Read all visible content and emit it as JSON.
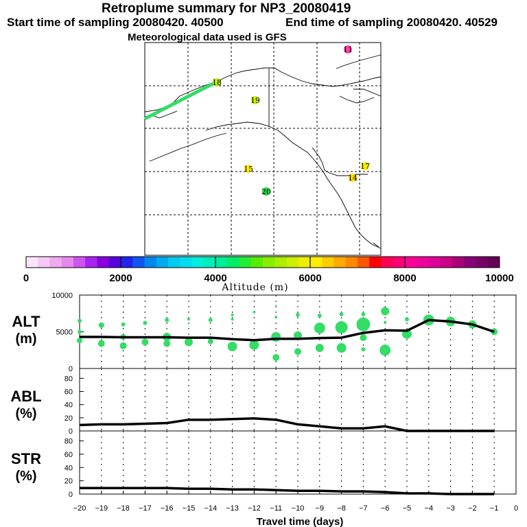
{
  "header": {
    "title": "Retroplume summary for NP3_20080419",
    "start": "Start time of sampling 20080420. 40500",
    "end": "End time of sampling 20080420. 40529",
    "met": "Meteorological data used is GFS"
  },
  "colors": {
    "track": "#33dd66",
    "line": "#000000"
  },
  "map": {
    "markers": [
      {
        "label": "11",
        "color": "#ff44aa"
      },
      {
        "label": "18",
        "color": "#bbee00"
      },
      {
        "label": "19",
        "color": "#ccee00"
      },
      {
        "label": "15",
        "color": "#ffee00"
      },
      {
        "label": "20",
        "color": "#22dd44"
      },
      {
        "label": "17",
        "color": "#ffee00"
      },
      {
        "label": "14",
        "color": "#ffdd00"
      }
    ]
  },
  "colorbar": {
    "ticks": [
      "0",
      "2000",
      "4000",
      "6000",
      "8000",
      "10000"
    ],
    "label": "Altitude (m)",
    "colors": [
      "#fbe4fb",
      "#f5c8f5",
      "#eeaaee",
      "#e488ee",
      "#cc55ee",
      "#aa22ee",
      "#8800dd",
      "#5500dd",
      "#2222ee",
      "#1155ee",
      "#0088ee",
      "#00aaee",
      "#00ccee",
      "#00ddee",
      "#00eedd",
      "#00eebb",
      "#00ee99",
      "#00ee66",
      "#22ee33",
      "#55ee00",
      "#88ee00",
      "#aaee00",
      "#ccee00",
      "#eeee00",
      "#ffee00",
      "#ffcc00",
      "#ffaa00",
      "#ff8800",
      "#ff5500",
      "#ff0000",
      "#ff0055",
      "#ff0077",
      "#ff0099",
      "#ee0099",
      "#dd0099",
      "#cc0088",
      "#aa0077",
      "#880077",
      "#770066",
      "#660055"
    ]
  },
  "chart_data": [
    {
      "type": "line",
      "panel": "ALT",
      "label_line1": "ALT",
      "label_line2": "(m)",
      "ylim": [
        0,
        10000
      ],
      "yticks": [
        "0",
        "5000",
        "10000"
      ],
      "x": [
        -20,
        -19,
        -18,
        -17,
        -16,
        -15,
        -14,
        -13,
        -12,
        -11,
        -10,
        -9,
        -8,
        -7,
        -6,
        -5,
        -4,
        -3,
        -2,
        -1
      ],
      "series": [
        {
          "name": "median altitude",
          "values": [
            4300,
            4300,
            4250,
            4250,
            4250,
            4200,
            4200,
            4000,
            3850,
            4050,
            4050,
            4150,
            4200,
            4850,
            5200,
            5150,
            6600,
            6400,
            6000,
            5000
          ]
        }
      ],
      "bubbles": [
        {
          "x": -20,
          "y": 6500,
          "r": 3
        },
        {
          "x": -20,
          "y": 5000,
          "r": 3
        },
        {
          "x": -20,
          "y": 3800,
          "r": 4
        },
        {
          "x": -19,
          "y": 5900,
          "r": 4
        },
        {
          "x": -19,
          "y": 3400,
          "r": 5
        },
        {
          "x": -18,
          "y": 6000,
          "r": 3
        },
        {
          "x": -18,
          "y": 4300,
          "r": 4
        },
        {
          "x": -18,
          "y": 3100,
          "r": 5
        },
        {
          "x": -17,
          "y": 6200,
          "r": 3
        },
        {
          "x": -17,
          "y": 3600,
          "r": 5
        },
        {
          "x": -16,
          "y": 6600,
          "r": 3
        },
        {
          "x": -16,
          "y": 4300,
          "r": 6
        },
        {
          "x": -16,
          "y": 3400,
          "r": 5
        },
        {
          "x": -15,
          "y": 6700,
          "r": 2
        },
        {
          "x": -15,
          "y": 3600,
          "r": 6
        },
        {
          "x": -14,
          "y": 6600,
          "r": 3
        },
        {
          "x": -14,
          "y": 3700,
          "r": 4
        },
        {
          "x": -13,
          "y": 7300,
          "r": 2
        },
        {
          "x": -13,
          "y": 6700,
          "r": 2
        },
        {
          "x": -13,
          "y": 3000,
          "r": 7
        },
        {
          "x": -12,
          "y": 7700,
          "r": 2
        },
        {
          "x": -12,
          "y": 3200,
          "r": 7
        },
        {
          "x": -11,
          "y": 8600,
          "r": 1
        },
        {
          "x": -11,
          "y": 7000,
          "r": 2
        },
        {
          "x": -11,
          "y": 4300,
          "r": 7
        },
        {
          "x": -11,
          "y": 1500,
          "r": 5
        },
        {
          "x": -10,
          "y": 7300,
          "r": 3
        },
        {
          "x": -10,
          "y": 4500,
          "r": 6
        },
        {
          "x": -10,
          "y": 2300,
          "r": 5
        },
        {
          "x": -9,
          "y": 7200,
          "r": 3
        },
        {
          "x": -9,
          "y": 5500,
          "r": 8
        },
        {
          "x": -9,
          "y": 2800,
          "r": 6
        },
        {
          "x": -8,
          "y": 7400,
          "r": 3
        },
        {
          "x": -8,
          "y": 5600,
          "r": 9
        },
        {
          "x": -8,
          "y": 2800,
          "r": 7
        },
        {
          "x": -7,
          "y": 7400,
          "r": 3
        },
        {
          "x": -7,
          "y": 6000,
          "r": 10
        },
        {
          "x": -7,
          "y": 4200,
          "r": 5
        },
        {
          "x": -7,
          "y": 2600,
          "r": 3
        },
        {
          "x": -6,
          "y": 7800,
          "r": 6
        },
        {
          "x": -6,
          "y": 6300,
          "r": 2
        },
        {
          "x": -6,
          "y": 2500,
          "r": 8
        },
        {
          "x": -5,
          "y": 6700,
          "r": 3
        },
        {
          "x": -5,
          "y": 4700,
          "r": 7
        },
        {
          "x": -4,
          "y": 6600,
          "r": 8
        },
        {
          "x": -3,
          "y": 6400,
          "r": 7
        },
        {
          "x": -2,
          "y": 6000,
          "r": 6
        },
        {
          "x": -1,
          "y": 5000,
          "r": 5
        }
      ]
    },
    {
      "type": "line",
      "panel": "ABL",
      "label_line1": "ABL",
      "label_line2": "(%)",
      "ylim": [
        0,
        95
      ],
      "yticks": [
        "0",
        "20",
        "40",
        "60",
        "80"
      ],
      "x": [
        -20,
        -19,
        -18,
        -17,
        -16,
        -15,
        -14,
        -13,
        -12,
        -11,
        -10,
        -9,
        -8,
        -7,
        -6,
        -5,
        -4,
        -3,
        -2,
        -1
      ],
      "series": [
        {
          "name": "ABL fraction",
          "values": [
            9,
            10,
            10,
            11,
            12,
            17,
            17,
            18,
            19,
            17,
            10,
            7,
            4,
            4,
            7,
            0,
            0,
            0,
            0,
            0
          ]
        }
      ]
    },
    {
      "type": "line",
      "panel": "STR",
      "label_line1": "STR",
      "label_line2": "(%)",
      "ylim": [
        0,
        95
      ],
      "yticks": [
        "0",
        "20",
        "40",
        "60",
        "80"
      ],
      "x": [
        -20,
        -19,
        -18,
        -17,
        -16,
        -15,
        -14,
        -13,
        -12,
        -11,
        -10,
        -9,
        -8,
        -7,
        -6,
        -5,
        -4,
        -3,
        -2,
        -1
      ],
      "series": [
        {
          "name": "STR fraction",
          "values": [
            9,
            9,
            9,
            9,
            9,
            8,
            8,
            7,
            7,
            6,
            5,
            5,
            4,
            4,
            3,
            1,
            1,
            0,
            0,
            0
          ]
        }
      ],
      "xticks": [
        "−20",
        "−19",
        "−18",
        "−17",
        "−16",
        "−15",
        "−14",
        "−13",
        "−12",
        "−11",
        "−10",
        "−9",
        "−8",
        "−7",
        "−6",
        "−5",
        "−4",
        "−3",
        "−2",
        "−1",
        "0"
      ],
      "xlabel": "Travel time (days)"
    }
  ]
}
